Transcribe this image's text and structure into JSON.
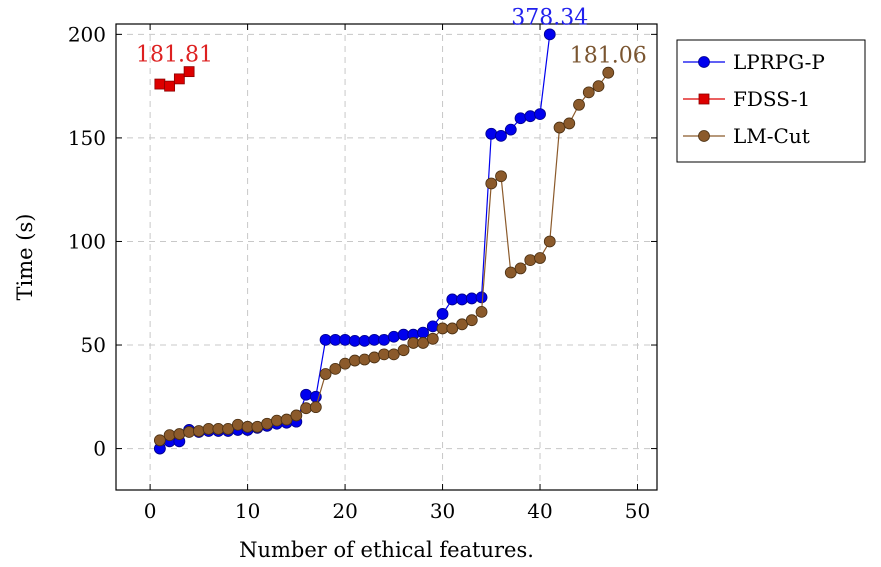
{
  "chart_data": {
    "type": "line",
    "title": "",
    "xlabel": "Number of ethical features.",
    "ylabel": "Time (s)",
    "xlim": [
      -3.5,
      52
    ],
    "ylim": [
      -20,
      205
    ],
    "xticks": [
      0,
      10,
      20,
      30,
      40,
      50
    ],
    "yticks": [
      0,
      50,
      100,
      150,
      200
    ],
    "grid": true,
    "legend_position": "outside-top-right",
    "series": [
      {
        "name": "LPRPG-P",
        "color": "#0000ee",
        "marker": "circle",
        "x": [
          1,
          2,
          3,
          4,
          5,
          6,
          7,
          8,
          9,
          10,
          11,
          12,
          13,
          14,
          15,
          16,
          17,
          18,
          19,
          20,
          21,
          22,
          23,
          24,
          25,
          26,
          27,
          28,
          29,
          30,
          31,
          32,
          33,
          34,
          35,
          36,
          37,
          38,
          39,
          40,
          41
        ],
        "y": [
          0,
          3.5,
          3.5,
          9,
          8,
          8.5,
          8.5,
          8.5,
          9,
          9,
          10,
          11,
          12,
          12.5,
          13,
          26,
          25,
          52.5,
          52.5,
          52.5,
          52,
          52,
          52.5,
          52.5,
          54,
          55,
          55,
          56,
          59,
          65,
          72,
          72,
          72.5,
          73,
          152,
          151,
          154,
          159.5,
          160.5,
          161.5,
          200
        ]
      },
      {
        "name": "FDSS-1",
        "color": "#dd0000",
        "marker": "square",
        "x": [
          1,
          2,
          3,
          4
        ],
        "y": [
          176,
          175,
          178.5,
          182
        ]
      },
      {
        "name": "LM-Cut",
        "color": "#8b5a2b",
        "marker": "circle",
        "x": [
          1,
          2,
          3,
          4,
          5,
          6,
          7,
          8,
          9,
          10,
          11,
          12,
          13,
          14,
          15,
          16,
          17,
          18,
          19,
          20,
          21,
          22,
          23,
          24,
          25,
          26,
          27,
          28,
          29,
          30,
          31,
          32,
          33,
          34,
          35,
          36,
          37,
          38,
          39,
          40,
          41,
          42,
          43,
          44,
          45,
          46,
          47
        ],
        "y": [
          4,
          6.5,
          7,
          8,
          8.5,
          9.5,
          9.5,
          9.5,
          11.5,
          10.5,
          10.5,
          12,
          13.5,
          14,
          16,
          19.5,
          20,
          36,
          38.5,
          41,
          42.5,
          43,
          44,
          45.5,
          45.5,
          47.5,
          51,
          51,
          53,
          58,
          58,
          60,
          62,
          66,
          128,
          131.5,
          85,
          87,
          91,
          92,
          100,
          155,
          157,
          166,
          172,
          175,
          181.5
        ]
      }
    ],
    "annotations": [
      {
        "text": "181.81",
        "series": "FDSS-1",
        "x": 2.5,
        "y": 182,
        "color": "#dd2020"
      },
      {
        "text": "378.34",
        "series": "LPRPG-P",
        "x": 41,
        "y": 200,
        "color": "#2020ee"
      },
      {
        "text": "181.06",
        "series": "LM-Cut",
        "x": 47,
        "y": 181.5,
        "color": "#7a5530"
      }
    ]
  }
}
